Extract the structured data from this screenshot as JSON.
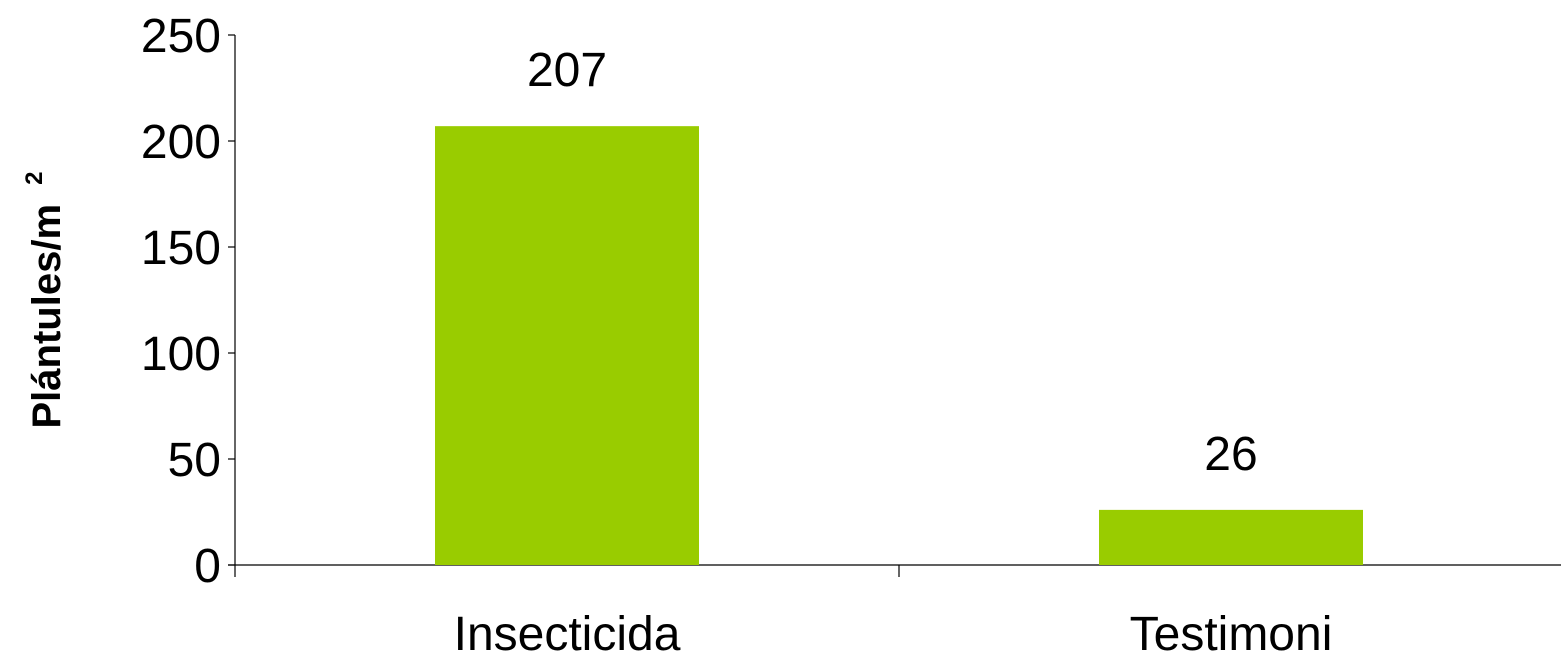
{
  "chart_data": {
    "type": "bar",
    "categories": [
      "Insecticida",
      "Testimoni"
    ],
    "values": [
      207,
      26
    ],
    "data_labels": [
      "207",
      "26"
    ],
    "ylabel": "Plántules/m",
    "ylabel_superscript": "2",
    "xlabel": "",
    "ylim": [
      0,
      250
    ],
    "yticks": [
      0,
      50,
      100,
      150,
      200,
      250
    ],
    "grid": false,
    "legend": "none",
    "bar_color": "#99CC00"
  }
}
